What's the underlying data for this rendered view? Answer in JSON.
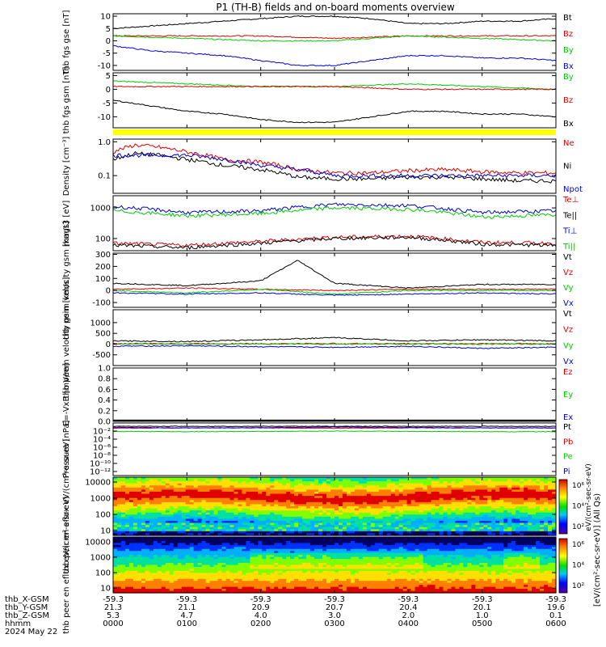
{
  "title": "P1 (TH-B) fields and on-board moments overview",
  "x_axis": {
    "ticks": [
      "0000",
      "0100",
      "0200",
      "0300",
      "0400",
      "0500",
      "0600"
    ],
    "rows": [
      {
        "label": "thb_X-GSM",
        "values": [
          "-59.3",
          "-59.3",
          "-59.3",
          "-59.3",
          "-59.3",
          "-59.3",
          "-59.3"
        ]
      },
      {
        "label": "thb_Y-GSM",
        "values": [
          "21.3",
          "21.1",
          "20.9",
          "20.7",
          "20.4",
          "20.1",
          "19.6"
        ]
      },
      {
        "label": "thb_Z-GSM",
        "values": [
          "5.3",
          "4.7",
          "4.0",
          "3.0",
          "2.0",
          "1.0",
          "0.1"
        ]
      },
      {
        "label": "hhmm",
        "values": [
          "0000",
          "0100",
          "0200",
          "0300",
          "0400",
          "0500",
          "0600"
        ]
      }
    ],
    "date": "2024 May 22"
  },
  "colorbar": {
    "ticks": [
      "10⁶",
      "10⁴",
      "10²",
      "10⁶",
      "10⁴",
      "10²"
    ],
    "label": "[eV/(cm²-sec-sr-eV)] (All Qs)",
    "overlap_text": "eV/(cm²-sec-sr-eV)"
  },
  "chart_data": [
    {
      "type": "line",
      "panel": "fgs-gse",
      "ylabel": "thb fgs gse [nT]",
      "ylim": [
        -12,
        11
      ],
      "yticks": [
        "10",
        "5",
        "0",
        "-5",
        "-10"
      ],
      "series": [
        {
          "name": "Bt",
          "color": "#000000",
          "x": [
            0,
            0.5,
            1,
            1.5,
            2,
            2.5,
            3,
            3.5,
            4,
            4.5,
            5,
            5.5,
            6
          ],
          "values": [
            5,
            6,
            7,
            8,
            9,
            10,
            10,
            9,
            7,
            7,
            8,
            8,
            9
          ]
        },
        {
          "name": "Bz",
          "color": "#dd0000",
          "x": [
            0,
            1,
            2,
            3,
            4,
            5,
            6
          ],
          "values": [
            2,
            2,
            2,
            1,
            2,
            2,
            2
          ]
        },
        {
          "name": "By",
          "color": "#00cc00",
          "x": [
            0,
            1,
            2,
            3,
            4,
            5,
            6
          ],
          "values": [
            2,
            1,
            0,
            0,
            2,
            1,
            0
          ]
        },
        {
          "name": "Bx",
          "color": "#0000dd",
          "x": [
            0,
            0.5,
            1,
            1.5,
            2,
            2.5,
            3,
            3.5,
            4,
            4.5,
            5,
            5.5,
            6
          ],
          "values": [
            -2,
            -4,
            -5,
            -6,
            -8,
            -10,
            -10,
            -8,
            -6,
            -6,
            -7,
            -7,
            -8
          ]
        }
      ]
    },
    {
      "type": "line",
      "panel": "fgs-gsm",
      "ylabel": "thb fgs gsm [nT]",
      "ylim": [
        -14,
        6
      ],
      "yticks": [
        "5",
        "0",
        "-5",
        "-10"
      ],
      "series": [
        {
          "name": "By",
          "color": "#00cc00",
          "x": [
            0,
            1,
            2,
            3,
            4,
            5,
            6
          ],
          "values": [
            3,
            2,
            1,
            1,
            2,
            1,
            0
          ]
        },
        {
          "name": "Bz",
          "color": "#dd0000",
          "x": [
            0,
            1,
            2,
            3,
            4,
            5,
            6
          ],
          "values": [
            1,
            1,
            1,
            1,
            0,
            0,
            0
          ]
        },
        {
          "name": "Bx",
          "color": "#000000",
          "x": [
            0,
            0.5,
            1,
            1.5,
            2,
            2.5,
            3,
            3.5,
            4,
            4.5,
            5,
            5.5,
            6
          ],
          "values": [
            -4,
            -6,
            -8,
            -9,
            -11,
            -12,
            -12,
            -10,
            -8,
            -8,
            -9,
            -9,
            -10
          ]
        }
      ]
    },
    {
      "type": "line",
      "panel": "density",
      "ylabel": "Density [cm⁻³]",
      "yscale": "log",
      "ylim": [
        0.03,
        1.2
      ],
      "yticks": [
        "1.0",
        "0.1"
      ],
      "series": [
        {
          "name": "Ne",
          "color": "#dd0000",
          "x": [
            0,
            0.3,
            0.6,
            1,
            1.5,
            2,
            2.5,
            3,
            3.5,
            4,
            4.5,
            5,
            5.5,
            6
          ],
          "values": [
            0.5,
            0.8,
            0.7,
            0.5,
            0.3,
            0.25,
            0.15,
            0.12,
            0.12,
            0.14,
            0.15,
            0.13,
            0.12,
            0.12
          ]
        },
        {
          "name": "Ni",
          "color": "#000000",
          "x": [
            0,
            0.3,
            0.6,
            1,
            1.5,
            2,
            2.5,
            3,
            3.5,
            4,
            4.5,
            5,
            5.5,
            6
          ],
          "values": [
            0.3,
            0.45,
            0.4,
            0.3,
            0.2,
            0.15,
            0.09,
            0.08,
            0.08,
            0.09,
            0.09,
            0.08,
            0.07,
            0.07
          ]
        },
        {
          "name": "Npot",
          "color": "#0000dd",
          "x": [
            0,
            1,
            2,
            3,
            4,
            5,
            6
          ],
          "values": [
            0.4,
            0.4,
            0.2,
            0.1,
            0.1,
            0.1,
            0.1
          ]
        }
      ]
    },
    {
      "type": "line",
      "panel": "temperature",
      "ylabel": "magt3 [eV]",
      "yscale": "log",
      "ylim": [
        40,
        2500
      ],
      "yticks": [
        "1000",
        "100"
      ],
      "series": [
        {
          "name": "Te⊥",
          "color": "#dd0000",
          "x": [
            0,
            1,
            2,
            3,
            4,
            5,
            6
          ],
          "values": [
            70,
            60,
            80,
            110,
            120,
            75,
            70
          ]
        },
        {
          "name": "Te||",
          "color": "#000000",
          "x": [
            0,
            1,
            2,
            3,
            4,
            5,
            6
          ],
          "values": [
            60,
            50,
            70,
            100,
            110,
            65,
            60
          ]
        },
        {
          "name": "Ti⊥",
          "color": "#0000dd",
          "x": [
            0,
            1,
            2,
            3,
            4,
            5,
            6
          ],
          "values": [
            1100,
            700,
            800,
            1300,
            1200,
            700,
            800
          ]
        },
        {
          "name": "Ti||",
          "color": "#00cc00",
          "x": [
            0,
            1,
            2,
            3,
            4,
            5,
            6
          ],
          "values": [
            800,
            550,
            650,
            1000,
            900,
            500,
            600
          ]
        }
      ]
    },
    {
      "type": "line",
      "panel": "peim-velocity",
      "ylabel": "thb peim velocity gsm [km/s]",
      "ylim": [
        -140,
        310
      ],
      "yticks": [
        "300",
        "200",
        "100",
        "0",
        "-100"
      ],
      "series": [
        {
          "name": "Vt",
          "color": "#000000",
          "x": [
            0,
            1,
            2,
            2.5,
            3,
            4,
            5,
            6
          ],
          "values": [
            60,
            40,
            80,
            250,
            60,
            20,
            50,
            50
          ]
        },
        {
          "name": "Vz",
          "color": "#dd0000",
          "x": [
            0,
            1,
            2,
            3,
            4,
            5,
            6
          ],
          "values": [
            10,
            20,
            10,
            0,
            10,
            10,
            10
          ]
        },
        {
          "name": "Vy",
          "color": "#00cc00",
          "x": [
            0,
            1,
            2,
            3,
            4,
            5,
            6
          ],
          "values": [
            0,
            -20,
            10,
            -30,
            0,
            0,
            0
          ]
        },
        {
          "name": "Vx",
          "color": "#0000dd",
          "x": [
            0,
            1,
            2,
            3,
            4,
            5,
            6
          ],
          "values": [
            -20,
            -30,
            -20,
            -40,
            -30,
            -20,
            -30
          ]
        }
      ]
    },
    {
      "type": "line",
      "panel": "peem-velocity",
      "ylabel": "thb peem velocity gsm [km/s]",
      "ylim": [
        -1000,
        1600
      ],
      "yticks": [
        "1000",
        "500",
        "0",
        "-500"
      ],
      "series": [
        {
          "name": "Vt",
          "color": "#000000",
          "x": [
            0,
            1,
            2,
            3,
            4,
            5,
            6
          ],
          "values": [
            150,
            120,
            200,
            300,
            150,
            200,
            150
          ]
        },
        {
          "name": "Vz",
          "color": "#dd0000",
          "x": [
            0,
            1,
            2,
            3,
            4,
            5,
            6
          ],
          "values": [
            20,
            20,
            20,
            20,
            20,
            20,
            20
          ]
        },
        {
          "name": "Vy",
          "color": "#00cc00",
          "x": [
            0,
            1,
            2,
            3,
            4,
            5,
            6
          ],
          "values": [
            0,
            0,
            0,
            0,
            0,
            0,
            0
          ]
        },
        {
          "name": "Vx",
          "color": "#0000dd",
          "x": [
            0,
            1,
            2,
            3,
            4,
            5,
            6
          ],
          "values": [
            -100,
            -80,
            -120,
            -150,
            -100,
            -200,
            -150
          ]
        }
      ]
    },
    {
      "type": "line",
      "panel": "efield",
      "ylabel": "E=-VxB [mV/m]",
      "ylim": [
        0,
        1
      ],
      "yticks": [
        "1.0",
        "0.8",
        "0.6",
        "0.4",
        "0.2",
        "0.0"
      ],
      "series": [
        {
          "name": "Ez",
          "color": "#dd0000",
          "values": []
        },
        {
          "name": "Ey",
          "color": "#00cc00",
          "values": []
        },
        {
          "name": "Ex",
          "color": "#0000dd",
          "values": []
        }
      ]
    },
    {
      "type": "line",
      "panel": "pressure",
      "ylabel": "Pressure [nPa]",
      "yscale": "log",
      "ylim": [
        1e-13,
        1
      ],
      "yticks": [
        "10⁻²",
        "10⁻⁴",
        "10⁻⁶",
        "10⁻⁸",
        "10⁻¹⁰",
        "10⁻¹²"
      ],
      "series": [
        {
          "name": "Pt",
          "color": "#000000",
          "x": [
            0,
            1,
            2,
            3,
            4,
            5,
            6
          ],
          "values": [
            0.15,
            0.15,
            0.15,
            0.15,
            0.15,
            0.15,
            0.15
          ]
        },
        {
          "name": "Pb",
          "color": "#dd0000",
          "x": [
            0,
            1,
            2,
            3,
            4,
            5,
            6
          ],
          "values": [
            0.05,
            0.06,
            0.06,
            0.05,
            0.06,
            0.06,
            0.06
          ]
        },
        {
          "name": "Pe",
          "color": "#00cc00",
          "x": [
            0,
            1,
            2,
            3,
            4,
            5,
            6
          ],
          "values": [
            0.008,
            0.007,
            0.008,
            0.01,
            0.008,
            0.007,
            0.007
          ]
        },
        {
          "name": "Pi",
          "color": "#0000dd",
          "x": [
            0,
            1,
            2,
            3,
            4,
            5,
            6
          ],
          "values": [
            0.08,
            0.06,
            0.07,
            0.1,
            0.08,
            0.06,
            0.06
          ]
        }
      ]
    },
    {
      "type": "heatmap",
      "panel": "peir-energy",
      "ylabel": "thb peir en eflux eV/(cm²-s-sr-eV)",
      "yscale": "log",
      "ylim": [
        5,
        20000
      ],
      "yticks": [
        "10000",
        "1000",
        "100",
        "10"
      ]
    },
    {
      "type": "heatmap",
      "panel": "peer-energy",
      "ylabel": "thb peer en eflux eV/(cm²-s-sr-eV)",
      "yscale": "log",
      "ylim": [
        5,
        20000
      ],
      "yticks": [
        "10000",
        "1000",
        "100",
        "10"
      ]
    }
  ]
}
